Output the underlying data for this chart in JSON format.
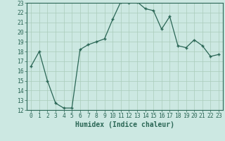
{
  "x": [
    0,
    1,
    2,
    3,
    4,
    5,
    6,
    7,
    8,
    9,
    10,
    11,
    12,
    13,
    14,
    15,
    16,
    17,
    18,
    19,
    20,
    21,
    22,
    23
  ],
  "y": [
    16.5,
    18.0,
    15.0,
    12.7,
    12.2,
    12.2,
    18.2,
    18.7,
    19.0,
    19.3,
    21.3,
    23.1,
    23.0,
    23.1,
    22.4,
    22.2,
    20.3,
    21.6,
    18.6,
    18.4,
    19.2,
    18.6,
    17.5,
    17.7
  ],
  "bg_color": "#cce8e2",
  "grid_color": "#aaccbb",
  "line_color": "#2a6655",
  "marker_color": "#2a6655",
  "xlabel": "Humidex (Indice chaleur)",
  "xlim": [
    -0.5,
    23.5
  ],
  "ylim": [
    12,
    23
  ],
  "yticks": [
    12,
    13,
    14,
    15,
    16,
    17,
    18,
    19,
    20,
    21,
    22,
    23
  ],
  "xticks": [
    0,
    1,
    2,
    3,
    4,
    5,
    6,
    7,
    8,
    9,
    10,
    11,
    12,
    13,
    14,
    15,
    16,
    17,
    18,
    19,
    20,
    21,
    22,
    23
  ],
  "xlabel_fontsize": 7.0,
  "tick_fontsize": 5.8,
  "title_fontsize": 7.0
}
